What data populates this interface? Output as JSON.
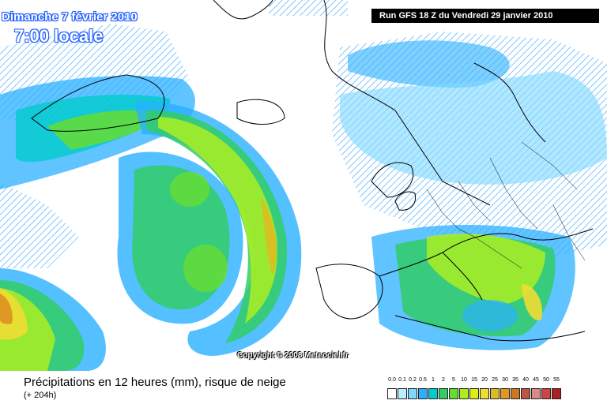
{
  "header": {
    "date": "Dimanche 7 février 2010",
    "time": "7:00 locale",
    "run": "Run GFS 18 Z du Vendredi 29 janvier 2010"
  },
  "copyright": "Copyright © 2008 Meteociel.fr",
  "footer": {
    "title": "Précipitations en 12 heures (mm), risque de neige",
    "subtitle": "(+ 204h)"
  },
  "legend": {
    "labels": [
      "0.0",
      "0.1",
      "0.2",
      "0.5",
      "1",
      "2",
      "5",
      "10",
      "15",
      "20",
      "25",
      "30",
      "35",
      "40",
      "45",
      "50",
      "55"
    ],
    "colors": [
      "#ffffff",
      "#b9f1ff",
      "#7fd8ff",
      "#29b0ff",
      "#00cccc",
      "#33cc66",
      "#66dd33",
      "#aaee22",
      "#ddee11",
      "#eedd33",
      "#ddbb22",
      "#dd9922",
      "#cc7722",
      "#bb5544",
      "#dd8888",
      "#cc4444",
      "#aa2222"
    ]
  },
  "colors": {
    "land": "#ffffff",
    "sea": "#e9f7ff",
    "snow_hatch": "#7fc6ff",
    "coastline": "#000000"
  }
}
